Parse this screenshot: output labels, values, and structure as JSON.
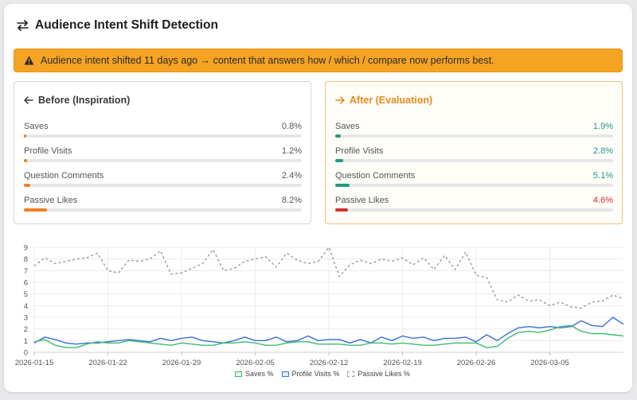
{
  "header": {
    "title": "Audience Intent Shift Detection",
    "icon": "swap-arrows-icon"
  },
  "alert": {
    "icon": "warning-icon",
    "text": "Audience intent shifted 11 days ago → content that answers how / which / compare now performs best.",
    "color": "#f5a323"
  },
  "before": {
    "title": "Before (Inspiration)",
    "icon": "arrow-left-icon",
    "metrics": [
      {
        "label": "Saves",
        "value": "0.8%",
        "percent": 0.8,
        "color": "#f07f1e"
      },
      {
        "label": "Profile Visits",
        "value": "1.2%",
        "percent": 1.2,
        "color": "#f07f1e"
      },
      {
        "label": "Question Comments",
        "value": "2.4%",
        "percent": 2.4,
        "color": "#f07f1e"
      },
      {
        "label": "Passive Likes",
        "value": "8.2%",
        "percent": 8.2,
        "color": "#f07f1e"
      }
    ]
  },
  "after": {
    "title": "After (Evaluation)",
    "icon": "arrow-right-icon",
    "metrics": [
      {
        "label": "Saves",
        "value": "1.9%",
        "percent": 1.9,
        "color": "#1f9a86",
        "text_color": "#1f9a86"
      },
      {
        "label": "Profile Visits",
        "value": "2.8%",
        "percent": 2.8,
        "color": "#1f9a86",
        "text_color": "#1f9a86"
      },
      {
        "label": "Question Comments",
        "value": "5.1%",
        "percent": 5.1,
        "color": "#1f9a86",
        "text_color": "#1f9a86"
      },
      {
        "label": "Passive Likes",
        "value": "4.6%",
        "percent": 4.6,
        "color": "#d32f2f",
        "text_color": "#d32f2f"
      }
    ]
  },
  "chart_data": {
    "type": "line",
    "title": "",
    "xlabel": "",
    "ylabel": "",
    "ylim": [
      0,
      9
    ],
    "yticks": [
      0,
      1,
      2,
      3,
      4,
      5,
      6,
      7,
      8,
      9
    ],
    "grid": true,
    "legend_position": "bottom-center",
    "start_date": "2026-01-15",
    "x_tick_labels": [
      "2026-01-15",
      "2026-01-22",
      "2026-01-29",
      "2026-02-05",
      "2026-02-12",
      "2026-02-19",
      "2026-02-26",
      "2026-03-05"
    ],
    "x_tick_index": [
      0,
      7,
      14,
      21,
      28,
      35,
      42,
      49
    ],
    "series": [
      {
        "name": "Saves %",
        "color": "#3dbb6e",
        "dashed": false,
        "values": [
          0.9,
          1.1,
          0.6,
          0.4,
          0.4,
          0.7,
          0.9,
          0.8,
          0.8,
          1.0,
          0.9,
          0.8,
          0.7,
          0.6,
          0.8,
          0.7,
          0.6,
          0.6,
          0.8,
          0.8,
          0.9,
          0.8,
          0.6,
          0.6,
          0.8,
          0.9,
          0.9,
          0.7,
          0.7,
          0.7,
          0.6,
          0.6,
          0.8,
          0.8,
          0.7,
          0.8,
          0.7,
          0.6,
          0.6,
          0.7,
          0.8,
          0.8,
          0.8,
          0.4,
          0.5,
          1.2,
          1.7,
          1.8,
          1.7,
          1.9,
          2.2,
          2.3,
          1.8,
          1.6,
          1.6,
          1.5,
          1.4
        ]
      },
      {
        "name": "Profile Visits %",
        "color": "#3a6fd8",
        "dashed": false,
        "values": [
          0.8,
          1.3,
          1.1,
          0.8,
          0.7,
          0.8,
          0.8,
          0.9,
          1.0,
          1.1,
          1.0,
          0.9,
          1.2,
          1.0,
          1.2,
          1.3,
          1.0,
          0.9,
          0.8,
          1.0,
          1.3,
          1.0,
          1.0,
          1.3,
          0.9,
          1.0,
          1.4,
          1.0,
          1.1,
          1.1,
          0.8,
          1.1,
          0.8,
          1.3,
          1.0,
          1.4,
          1.2,
          1.3,
          1.0,
          1.2,
          1.2,
          1.3,
          0.9,
          1.5,
          1.0,
          1.6,
          2.1,
          2.2,
          2.1,
          2.2,
          2.1,
          2.2,
          2.7,
          2.3,
          2.2,
          3.0,
          2.4
        ]
      },
      {
        "name": "Passive Likes %",
        "color": "#9a9a9a",
        "dashed": true,
        "values": [
          7.4,
          8.1,
          7.6,
          7.8,
          8.0,
          8.1,
          8.5,
          7.0,
          6.8,
          7.9,
          7.8,
          8.0,
          8.7,
          6.7,
          6.8,
          7.2,
          7.6,
          8.8,
          7.0,
          7.2,
          7.8,
          8.0,
          8.2,
          7.3,
          8.5,
          7.9,
          7.6,
          7.8,
          9.0,
          6.5,
          7.5,
          7.9,
          7.6,
          8.0,
          7.8,
          8.1,
          7.5,
          8.1,
          7.1,
          8.3,
          7.1,
          8.6,
          6.6,
          6.4,
          4.5,
          4.3,
          4.9,
          4.4,
          4.5,
          4.0,
          4.3,
          3.9,
          3.8,
          4.3,
          4.4,
          4.9,
          4.6
        ]
      }
    ]
  }
}
